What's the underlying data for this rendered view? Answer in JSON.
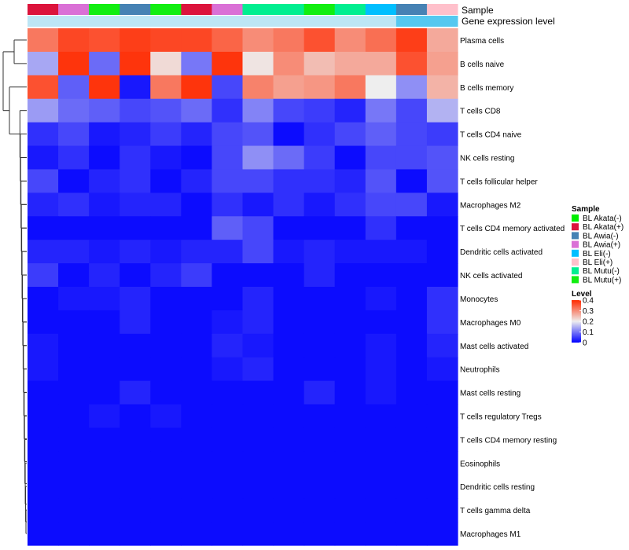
{
  "chart_data": {
    "type": "heatmap",
    "annotation_labels": [
      "Sample",
      "Gene expression level"
    ],
    "sample_track": [
      "BL Akata(+)",
      "BL Awia(+)",
      "BL Mutu(+)",
      "BL Awia(-)",
      "BL Mutu(+)",
      "BL Akata(+)",
      "BL Awia(+)",
      "BL Mutu(-)",
      "BL Mutu(-)",
      "BL Mutu(+)",
      "BL Mutu(-)",
      "BL Eli(-)",
      "BL Awia(-)",
      "BL Eli(+)"
    ],
    "expression_track": [
      "low",
      "low",
      "low",
      "low",
      "low",
      "low",
      "low",
      "low",
      "low",
      "low",
      "low",
      "low",
      "high",
      "high"
    ],
    "rows": [
      "Plasma cells",
      "B cells naive",
      "B cells memory",
      "T cells CD8",
      "T cells CD4 naive",
      "NK cells resting",
      "T cells follicular helper",
      "Macrophages M2",
      "T cells CD4 memory activated",
      "Dendritic cells activated",
      "NK cells activated",
      "Monocytes",
      "Macrophages M0",
      "Mast cells activated",
      "Neutrophils",
      "Mast cells resting",
      "T cells regulatory  Tregs",
      "T cells CD4 memory resting",
      "Eosinophils",
      "Dendritic cells resting",
      "T cells gamma delta",
      "Macrophages M1"
    ],
    "values": [
      [
        0.32,
        0.37,
        0.36,
        0.38,
        0.37,
        0.37,
        0.34,
        0.3,
        0.32,
        0.36,
        0.3,
        0.33,
        0.38,
        0.27
      ],
      [
        0.14,
        0.39,
        0.09,
        0.39,
        0.22,
        0.1,
        0.39,
        0.21,
        0.3,
        0.25,
        0.27,
        0.27,
        0.36,
        0.28
      ],
      [
        0.36,
        0.08,
        0.39,
        0.02,
        0.32,
        0.39,
        0.06,
        0.31,
        0.28,
        0.29,
        0.32,
        0.2,
        0.12,
        0.26
      ],
      [
        0.13,
        0.09,
        0.08,
        0.06,
        0.07,
        0.09,
        0.04,
        0.11,
        0.06,
        0.05,
        0.03,
        0.1,
        0.06,
        0.15
      ],
      [
        0.04,
        0.06,
        0.02,
        0.03,
        0.05,
        0.03,
        0.06,
        0.07,
        0.01,
        0.04,
        0.06,
        0.08,
        0.06,
        0.05
      ],
      [
        0.02,
        0.04,
        0.01,
        0.04,
        0.02,
        0.01,
        0.06,
        0.12,
        0.09,
        0.05,
        0.01,
        0.06,
        0.06,
        0.07
      ],
      [
        0.06,
        0.01,
        0.03,
        0.04,
        0.01,
        0.03,
        0.06,
        0.06,
        0.04,
        0.04,
        0.03,
        0.07,
        0.01,
        0.07
      ],
      [
        0.03,
        0.04,
        0.02,
        0.03,
        0.03,
        0.01,
        0.04,
        0.02,
        0.04,
        0.02,
        0.04,
        0.06,
        0.06,
        0.02
      ],
      [
        0.01,
        0.01,
        0.01,
        0.01,
        0.01,
        0.01,
        0.08,
        0.06,
        0.01,
        0.01,
        0.01,
        0.04,
        0.01,
        0.01
      ],
      [
        0.03,
        0.03,
        0.02,
        0.03,
        0.02,
        0.03,
        0.03,
        0.06,
        0.02,
        0.03,
        0.02,
        0.02,
        0.02,
        0.01
      ],
      [
        0.05,
        0.01,
        0.03,
        0.01,
        0.03,
        0.05,
        0.01,
        0.01,
        0.01,
        0.03,
        0.01,
        0.01,
        0.01,
        0.01
      ],
      [
        0.01,
        0.02,
        0.02,
        0.03,
        0.01,
        0.01,
        0.01,
        0.03,
        0.01,
        0.01,
        0.01,
        0.02,
        0.01,
        0.04
      ],
      [
        0.01,
        0.01,
        0.01,
        0.03,
        0.01,
        0.01,
        0.02,
        0.03,
        0.01,
        0.01,
        0.01,
        0.01,
        0.01,
        0.04
      ],
      [
        0.02,
        0.01,
        0.01,
        0.01,
        0.01,
        0.01,
        0.03,
        0.02,
        0.01,
        0.01,
        0.01,
        0.02,
        0.01,
        0.03
      ],
      [
        0.02,
        0.01,
        0.01,
        0.01,
        0.01,
        0.01,
        0.02,
        0.03,
        0.01,
        0.01,
        0.01,
        0.02,
        0.01,
        0.02
      ],
      [
        0.01,
        0.01,
        0.01,
        0.03,
        0.01,
        0.01,
        0.01,
        0.01,
        0.01,
        0.03,
        0.01,
        0.02,
        0.01,
        0.01
      ],
      [
        0.01,
        0.01,
        0.02,
        0.01,
        0.02,
        0.01,
        0.01,
        0.01,
        0.01,
        0.01,
        0.01,
        0.01,
        0.01,
        0.01
      ],
      [
        0.01,
        0.01,
        0.01,
        0.01,
        0.01,
        0.01,
        0.01,
        0.01,
        0.01,
        0.01,
        0.01,
        0.01,
        0.01,
        0.01
      ],
      [
        0.01,
        0.01,
        0.01,
        0.01,
        0.01,
        0.01,
        0.01,
        0.01,
        0.01,
        0.01,
        0.01,
        0.01,
        0.01,
        0.01
      ],
      [
        0.01,
        0.01,
        0.01,
        0.01,
        0.01,
        0.01,
        0.01,
        0.01,
        0.01,
        0.01,
        0.01,
        0.01,
        0.01,
        0.01
      ],
      [
        0.01,
        0.01,
        0.01,
        0.01,
        0.01,
        0.01,
        0.01,
        0.01,
        0.01,
        0.01,
        0.01,
        0.01,
        0.01,
        0.01
      ],
      [
        0.01,
        0.01,
        0.01,
        0.01,
        0.01,
        0.01,
        0.01,
        0.01,
        0.01,
        0.01,
        0.01,
        0.01,
        0.01,
        0.01
      ]
    ],
    "color_scale": {
      "low": "#0000ff",
      "mid": "#eeeeee",
      "high": "#ff2a00",
      "domain": [
        0,
        0.2,
        0.4
      ]
    },
    "legend": {
      "sample_title": "Sample",
      "sample_entries": [
        {
          "label": "BL Akata(-)",
          "color": "#00ee00"
        },
        {
          "label": "BL Akata(+)",
          "color": "#dc143c"
        },
        {
          "label": "BL Awia(-)",
          "color": "#4682b4"
        },
        {
          "label": "BL Awia(+)",
          "color": "#da70d6"
        },
        {
          "label": "BL Eli(-)",
          "color": "#00bfff"
        },
        {
          "label": "BL Eli(+)",
          "color": "#ffc0cb"
        },
        {
          "label": "BL Mutu(-)",
          "color": "#00ee90"
        },
        {
          "label": "BL Mutu(+)",
          "color": "#11ee11"
        }
      ],
      "level_title": "Level",
      "level_ticks": [
        "0.4",
        "0.3",
        "0.2",
        "0.1",
        "0"
      ],
      "level_values": [
        0.4,
        0.3,
        0.2,
        0.1,
        0
      ],
      "placement": "right"
    },
    "expression_colors": {
      "low": "#bde6f5",
      "high": "#55c8f0"
    }
  }
}
